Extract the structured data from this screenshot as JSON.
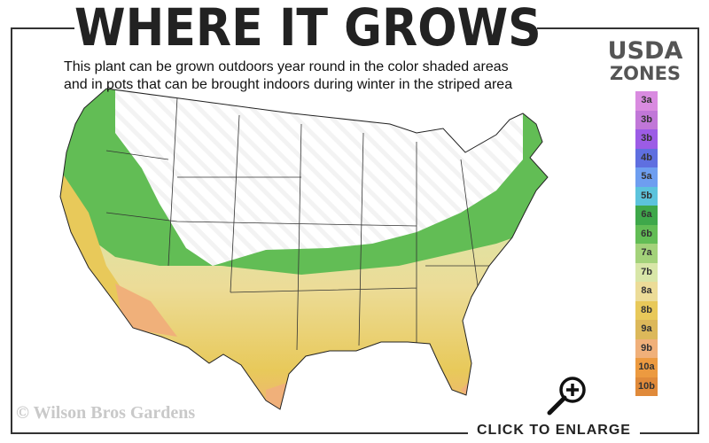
{
  "title": "WHERE IT GROWS",
  "subtitle": [
    "This plant can be grown outdoors year round in the color shaded areas",
    "and in pots that can be brought indoors during winter in the striped area"
  ],
  "legend": {
    "title_line1": "USDA",
    "title_line2": "ZONES",
    "zones": [
      {
        "label": "3a",
        "color": "#d98be0"
      },
      {
        "label": "3b",
        "color": "#c177d8"
      },
      {
        "label": "3b",
        "color": "#9c5ce6"
      },
      {
        "label": "4b",
        "color": "#5f6fe0"
      },
      {
        "label": "5a",
        "color": "#6e9ef0"
      },
      {
        "label": "5b",
        "color": "#5cc3dc"
      },
      {
        "label": "6a",
        "color": "#3ea84a"
      },
      {
        "label": "6b",
        "color": "#62bd55"
      },
      {
        "label": "7a",
        "color": "#a3d27a"
      },
      {
        "label": "7b",
        "color": "#d8e6a8"
      },
      {
        "label": "8a",
        "color": "#ecdc98"
      },
      {
        "label": "8b",
        "color": "#e8c95a"
      },
      {
        "label": "9a",
        "color": "#dcb85a"
      },
      {
        "label": "9b",
        "color": "#f0b07a"
      },
      {
        "label": "10a",
        "color": "#ec9a40"
      },
      {
        "label": "10b",
        "color": "#e08a3a"
      }
    ]
  },
  "copyright": "© Wilson Bros Gardens",
  "enlarge_label": "CLICK TO ENLARGE",
  "icons": {
    "enlarge": "magnifier-plus-icon"
  }
}
